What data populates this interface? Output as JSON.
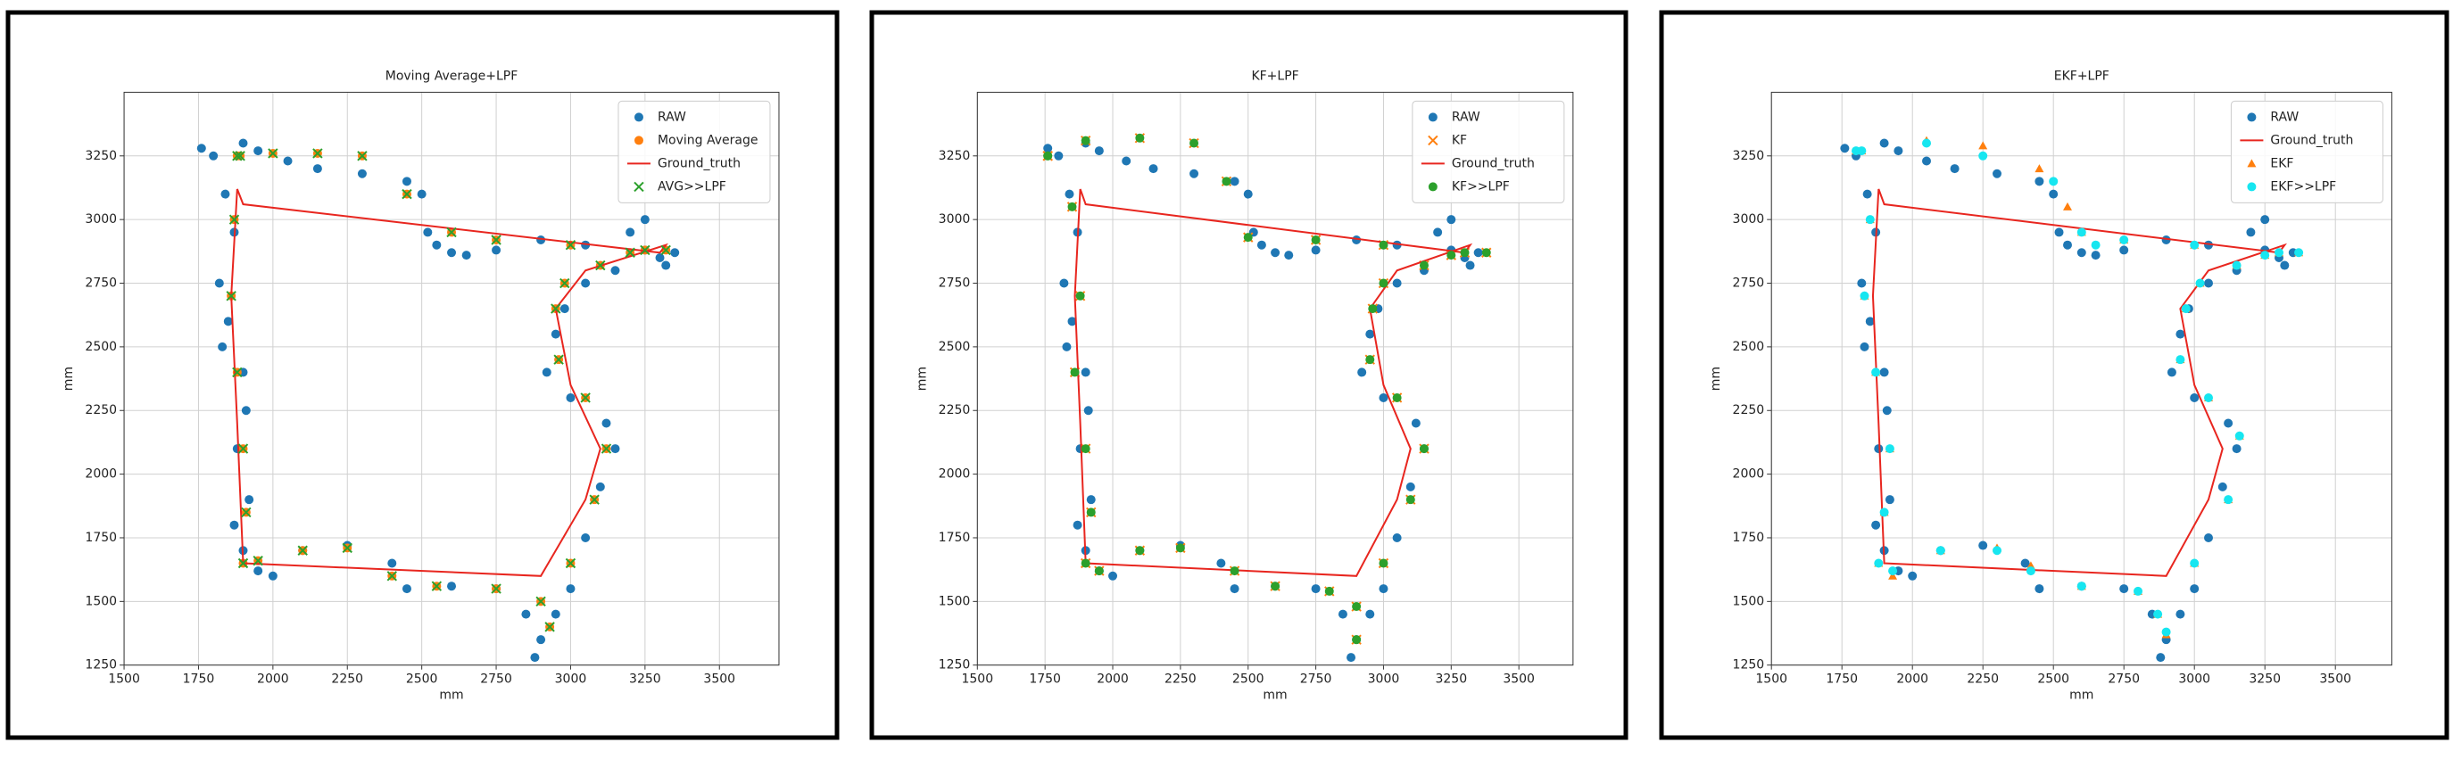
{
  "chart_data": [
    {
      "type": "scatter",
      "title": "Moving Average+LPF",
      "xlabel": "mm",
      "ylabel": "mm",
      "xlim": [
        1500,
        3700
      ],
      "ylim": [
        1250,
        3500
      ],
      "xticks": [
        1500,
        1750,
        2000,
        2250,
        2500,
        2750,
        3000,
        3250,
        3500
      ],
      "yticks": [
        1250,
        1500,
        1750,
        2000,
        2250,
        2500,
        2750,
        3000,
        3250
      ],
      "grid": true,
      "legend": "upper right",
      "series": [
        {
          "name": "RAW",
          "color": "#1f77b4",
          "marker": "o",
          "x": [
            1760,
            1800,
            1900,
            1950,
            2050,
            2150,
            2300,
            2450,
            2500,
            2520,
            2550,
            2600,
            2650,
            2750,
            2900,
            3050,
            3200,
            3250,
            3300,
            3350,
            3320,
            1840,
            1870,
            1820,
            1850,
            1830,
            1900,
            1910,
            1880,
            1920,
            1870,
            1900,
            1950,
            2000,
            2100,
            2250,
            2400,
            2450,
            2600,
            2750,
            2850,
            2900,
            2880,
            2950,
            3000,
            3050,
            3100,
            3150,
            3120,
            3000,
            2920,
            2950,
            2980,
            3050,
            3150,
            3250
          ],
          "values": [
            3280,
            3250,
            3300,
            3270,
            3230,
            3200,
            3180,
            3150,
            3100,
            2950,
            2900,
            2870,
            2860,
            2880,
            2920,
            2900,
            2950,
            3000,
            2850,
            2870,
            2820,
            3100,
            2950,
            2750,
            2600,
            2500,
            2400,
            2250,
            2100,
            1900,
            1800,
            1700,
            1620,
            1600,
            1700,
            1720,
            1650,
            1550,
            1560,
            1550,
            1450,
            1350,
            1280,
            1450,
            1550,
            1750,
            1950,
            2100,
            2200,
            2300,
            2400,
            2550,
            2650,
            2750,
            2800,
            2880
          ]
        },
        {
          "name": "Moving Average",
          "color": "#ff7f0e",
          "marker": "o",
          "x": [
            1880,
            1870,
            1860,
            1880,
            1900,
            1910,
            1900,
            1950,
            2100,
            2250,
            2400,
            2550,
            2750,
            2900,
            2930,
            3000,
            3080,
            3120,
            3050,
            2960,
            2950,
            2980,
            3100,
            3250,
            3320,
            3200,
            3000,
            2750,
            2600,
            2450,
            2300,
            2150,
            2000,
            1890
          ],
          "values": [
            3250,
            3000,
            2700,
            2400,
            2100,
            1850,
            1650,
            1660,
            1700,
            1710,
            1600,
            1560,
            1550,
            1500,
            1400,
            1650,
            1900,
            2100,
            2300,
            2450,
            2650,
            2750,
            2820,
            2880,
            2880,
            2870,
            2900,
            2920,
            2950,
            3100,
            3250,
            3260,
            3260,
            3250
          ]
        },
        {
          "name": "Ground_truth",
          "color": "#e8261f",
          "marker": "line",
          "x": [
            1880,
            1860,
            1880,
            1900,
            2900,
            3050,
            3100,
            3000,
            2950,
            3050,
            3320,
            3300,
            1900,
            1880
          ],
          "values": [
            3120,
            2700,
            2200,
            1650,
            1600,
            1900,
            2100,
            2350,
            2650,
            2800,
            2900,
            2870,
            3060,
            3120
          ]
        },
        {
          "name": "AVG>>LPF",
          "color": "#2ca02c",
          "marker": "x",
          "x": [
            1880,
            1870,
            1860,
            1880,
            1900,
            1910,
            1900,
            1950,
            2100,
            2250,
            2400,
            2550,
            2750,
            2900,
            2930,
            3000,
            3080,
            3120,
            3050,
            2960,
            2950,
            2980,
            3100,
            3250,
            3320,
            3200,
            3000,
            2750,
            2600,
            2450,
            2300,
            2150,
            2000,
            1890
          ],
          "values": [
            3250,
            3000,
            2700,
            2400,
            2100,
            1850,
            1650,
            1660,
            1700,
            1710,
            1600,
            1560,
            1550,
            1500,
            1400,
            1650,
            1900,
            2100,
            2300,
            2450,
            2650,
            2750,
            2820,
            2880,
            2880,
            2870,
            2900,
            2920,
            2950,
            3100,
            3250,
            3260,
            3260,
            3250
          ]
        }
      ]
    },
    {
      "type": "scatter",
      "title": "KF+LPF",
      "xlabel": "mm",
      "ylabel": "mm",
      "xlim": [
        1500,
        3700
      ],
      "ylim": [
        1250,
        3500
      ],
      "xticks": [
        1500,
        1750,
        2000,
        2250,
        2500,
        2750,
        3000,
        3250,
        3500
      ],
      "yticks": [
        1250,
        1500,
        1750,
        2000,
        2250,
        2500,
        2750,
        3000,
        3250
      ],
      "grid": true,
      "legend": "upper right",
      "series": [
        {
          "name": "RAW",
          "color": "#1f77b4",
          "marker": "o",
          "x": [
            1760,
            1800,
            1900,
            1950,
            2050,
            2150,
            2300,
            2450,
            2500,
            2520,
            2550,
            2600,
            2650,
            2750,
            2900,
            3050,
            3200,
            3250,
            3300,
            3350,
            3320,
            1840,
            1870,
            1820,
            1850,
            1830,
            1900,
            1910,
            1880,
            1920,
            1870,
            1900,
            1950,
            2000,
            2100,
            2250,
            2400,
            2450,
            2600,
            2750,
            2850,
            2900,
            2880,
            2950,
            3000,
            3050,
            3100,
            3150,
            3120,
            3000,
            2920,
            2950,
            2980,
            3050,
            3150,
            3250
          ],
          "values": [
            3280,
            3250,
            3300,
            3270,
            3230,
            3200,
            3180,
            3150,
            3100,
            2950,
            2900,
            2870,
            2860,
            2880,
            2920,
            2900,
            2950,
            3000,
            2850,
            2870,
            2820,
            3100,
            2950,
            2750,
            2600,
            2500,
            2400,
            2250,
            2100,
            1900,
            1800,
            1700,
            1620,
            1600,
            1700,
            1720,
            1650,
            1550,
            1560,
            1550,
            1450,
            1350,
            1280,
            1450,
            1550,
            1750,
            1950,
            2100,
            2200,
            2300,
            2400,
            2550,
            2650,
            2750,
            2800,
            2880
          ]
        },
        {
          "name": "KF",
          "color": "#ff7f0e",
          "marker": "x",
          "x": [
            1760,
            1850,
            1880,
            1860,
            1900,
            1920,
            1900,
            1950,
            2100,
            2250,
            2450,
            2600,
            2800,
            2900,
            2900,
            3000,
            3100,
            3150,
            3050,
            2950,
            2960,
            3000,
            3150,
            3300,
            3380,
            3250,
            3000,
            2750,
            2500,
            2420,
            2300,
            2100,
            1900,
            1760
          ],
          "values": [
            3250,
            3050,
            2700,
            2400,
            2100,
            1850,
            1650,
            1620,
            1700,
            1710,
            1620,
            1560,
            1540,
            1480,
            1350,
            1650,
            1900,
            2100,
            2300,
            2450,
            2650,
            2750,
            2820,
            2870,
            2870,
            2860,
            2900,
            2920,
            2930,
            3150,
            3300,
            3320,
            3310,
            3250
          ]
        },
        {
          "name": "Ground_truth",
          "color": "#e8261f",
          "marker": "line",
          "x": [
            1880,
            1860,
            1880,
            1900,
            2900,
            3050,
            3100,
            3000,
            2950,
            3050,
            3320,
            3300,
            1900,
            1880
          ],
          "values": [
            3120,
            2700,
            2200,
            1650,
            1600,
            1900,
            2100,
            2350,
            2650,
            2800,
            2900,
            2870,
            3060,
            3120
          ]
        },
        {
          "name": "KF>>LPF",
          "color": "#2ca02c",
          "marker": "o",
          "x": [
            1760,
            1850,
            1880,
            1860,
            1900,
            1920,
            1900,
            1950,
            2100,
            2250,
            2450,
            2600,
            2800,
            2900,
            2900,
            3000,
            3100,
            3150,
            3050,
            2950,
            2960,
            3000,
            3150,
            3300,
            3380,
            3250,
            3000,
            2750,
            2500,
            2420,
            2300,
            2100,
            1900,
            1760
          ],
          "values": [
            3250,
            3050,
            2700,
            2400,
            2100,
            1850,
            1650,
            1620,
            1700,
            1710,
            1620,
            1560,
            1540,
            1480,
            1350,
            1650,
            1900,
            2100,
            2300,
            2450,
            2650,
            2750,
            2820,
            2870,
            2870,
            2860,
            2900,
            2920,
            2930,
            3150,
            3300,
            3320,
            3310,
            3250
          ]
        }
      ]
    },
    {
      "type": "scatter",
      "title": "EKF+LPF",
      "xlabel": "mm",
      "ylabel": "mm",
      "xlim": [
        1500,
        3700
      ],
      "ylim": [
        1250,
        3500
      ],
      "xticks": [
        1500,
        1750,
        2000,
        2250,
        2500,
        2750,
        3000,
        3250,
        3500
      ],
      "yticks": [
        1250,
        1500,
        1750,
        2000,
        2250,
        2500,
        2750,
        3000,
        3250
      ],
      "grid": true,
      "legend": "upper right",
      "series": [
        {
          "name": "RAW",
          "color": "#1f77b4",
          "marker": "o",
          "x": [
            1760,
            1800,
            1900,
            1950,
            2050,
            2150,
            2300,
            2450,
            2500,
            2520,
            2550,
            2600,
            2650,
            2750,
            2900,
            3050,
            3200,
            3250,
            3300,
            3350,
            3320,
            1840,
            1870,
            1820,
            1850,
            1830,
            1900,
            1910,
            1880,
            1920,
            1870,
            1900,
            1950,
            2000,
            2100,
            2250,
            2400,
            2450,
            2600,
            2750,
            2850,
            2900,
            2880,
            2950,
            3000,
            3050,
            3100,
            3150,
            3120,
            3000,
            2920,
            2950,
            2980,
            3050,
            3150,
            3250
          ],
          "values": [
            3280,
            3250,
            3300,
            3270,
            3230,
            3200,
            3180,
            3150,
            3100,
            2950,
            2900,
            2870,
            2860,
            2880,
            2920,
            2900,
            2950,
            3000,
            2850,
            2870,
            2820,
            3100,
            2950,
            2750,
            2600,
            2500,
            2400,
            2250,
            2100,
            1900,
            1800,
            1700,
            1620,
            1600,
            1700,
            1720,
            1650,
            1550,
            1560,
            1550,
            1450,
            1350,
            1280,
            1450,
            1550,
            1750,
            1950,
            2100,
            2200,
            2300,
            2400,
            2550,
            2650,
            2750,
            2800,
            2880
          ]
        },
        {
          "name": "Ground_truth",
          "color": "#e8261f",
          "marker": "line",
          "x": [
            1880,
            1860,
            1880,
            1900,
            2900,
            3050,
            3100,
            3000,
            2950,
            3050,
            3320,
            3300,
            1900,
            1880
          ],
          "values": [
            3120,
            2700,
            2200,
            1650,
            1600,
            1900,
            2100,
            2350,
            2650,
            2800,
            2900,
            2870,
            3060,
            3120
          ]
        },
        {
          "name": "EKF",
          "color": "#ff7f0e",
          "marker": "^",
          "x": [
            1800,
            1850,
            1830,
            1870,
            1920,
            1900,
            1880,
            1930,
            2100,
            2300,
            2420,
            2600,
            2800,
            2870,
            2900,
            3000,
            3120,
            3160,
            3050,
            2950,
            2970,
            3020,
            3150,
            3300,
            3370,
            3250,
            3000,
            2750,
            2600,
            2550,
            2450,
            2250,
            2050,
            1820
          ],
          "values": [
            3270,
            3000,
            2700,
            2400,
            2100,
            1850,
            1650,
            1600,
            1700,
            1710,
            1640,
            1560,
            1540,
            1450,
            1370,
            1650,
            1900,
            2150,
            2300,
            2450,
            2650,
            2750,
            2820,
            2870,
            2870,
            2860,
            2900,
            2920,
            2950,
            3050,
            3200,
            3290,
            3310,
            3270
          ]
        },
        {
          "name": "EKF>>LPF",
          "color": "#17e6f0",
          "marker": "o",
          "x": [
            1800,
            1850,
            1830,
            1870,
            1920,
            1900,
            1880,
            1930,
            2100,
            2300,
            2420,
            2600,
            2800,
            2870,
            2900,
            3000,
            3120,
            3160,
            3050,
            2950,
            2970,
            3020,
            3150,
            3300,
            3370,
            3250,
            3000,
            2750,
            2650,
            2600,
            2500,
            2250,
            2050,
            1820
          ],
          "values": [
            3270,
            3000,
            2700,
            2400,
            2100,
            1850,
            1650,
            1620,
            1700,
            1700,
            1620,
            1560,
            1540,
            1450,
            1380,
            1650,
            1900,
            2150,
            2300,
            2450,
            2650,
            2750,
            2820,
            2870,
            2870,
            2860,
            2900,
            2920,
            2900,
            2950,
            3150,
            3250,
            3300,
            3270
          ]
        }
      ]
    }
  ]
}
